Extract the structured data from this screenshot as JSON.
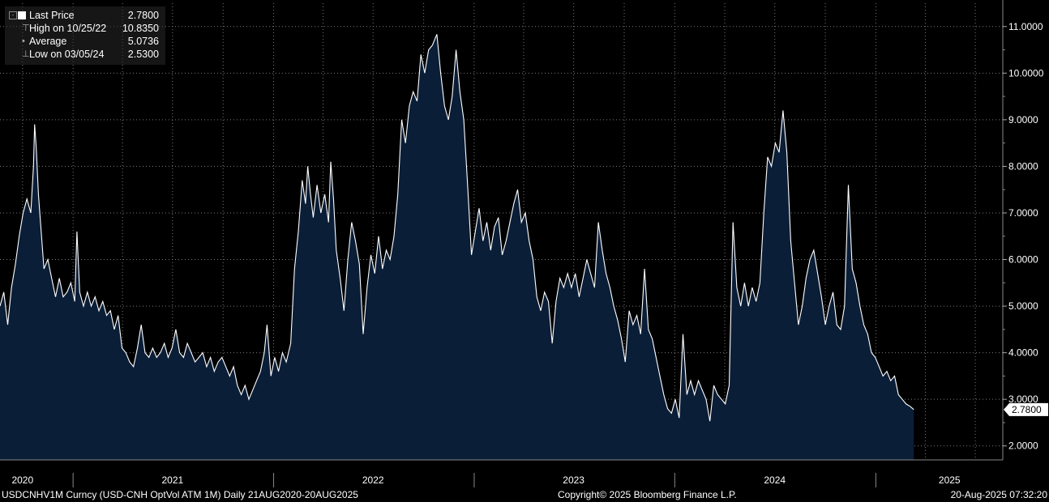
{
  "legend": {
    "last_label": "Last Price",
    "last_value": "2.7800",
    "high_label": "High on 10/25/22",
    "high_value": "10.8350",
    "avg_label": "Average",
    "avg_value": "5.0736",
    "low_label": "Low on 03/05/24",
    "low_value": "2.5300"
  },
  "footer": {
    "left": "USDCNHV1M Curncy (USD-CNH OptVol ATM 1M)  Daily 21AUG2020-20AUG2025",
    "center": "Copyright© 2025 Bloomberg Finance L.P.",
    "right": "20-Aug-2025 07:32:20"
  },
  "last_price_tag": "2.7800",
  "colors": {
    "line": "#ffffff",
    "fill": "#0b1e38",
    "grid": "#7a7a7a",
    "background": "#000000",
    "tag_bg": "#ffffff"
  },
  "chart_data": {
    "type": "area",
    "title": "",
    "xlabel": "",
    "ylabel": "",
    "ylim": [
      1.7,
      11.5
    ],
    "grid": true,
    "legend_position": "top-left",
    "yticks": [
      "2.0000",
      "3.0000",
      "4.0000",
      "5.0000",
      "6.0000",
      "7.0000",
      "8.0000",
      "9.0000",
      "10.0000",
      "11.0000"
    ],
    "ytick_values": [
      2,
      3,
      4,
      5,
      6,
      7,
      8,
      9,
      10,
      11
    ],
    "xtick_labels": [
      "2020",
      "2021",
      "2022",
      "2023",
      "2024",
      "2025"
    ],
    "x_label_positions": [
      "2020-10-01",
      "2021-07-01",
      "2022-07-01",
      "2023-07-01",
      "2024-07-01",
      "2025-05-15"
    ],
    "x_separators": [
      "2021-01-01",
      "2022-01-01",
      "2023-01-01",
      "2024-01-01",
      "2025-01-01"
    ],
    "series": [
      {
        "values": [
          [
            "2020-08-21",
            5.0
          ],
          [
            "2020-08-28",
            5.3
          ],
          [
            "2020-09-04",
            4.6
          ],
          [
            "2020-09-11",
            5.4
          ],
          [
            "2020-09-18",
            5.9
          ],
          [
            "2020-09-25",
            6.5
          ],
          [
            "2020-10-02",
            7.0
          ],
          [
            "2020-10-09",
            7.3
          ],
          [
            "2020-10-16",
            7.0
          ],
          [
            "2020-10-21",
            8.0
          ],
          [
            "2020-10-23",
            8.9
          ],
          [
            "2020-10-26",
            8.4
          ],
          [
            "2020-10-30",
            7.4
          ],
          [
            "2020-11-04",
            6.6
          ],
          [
            "2020-11-09",
            5.8
          ],
          [
            "2020-11-16",
            6.0
          ],
          [
            "2020-11-23",
            5.6
          ],
          [
            "2020-11-30",
            5.2
          ],
          [
            "2020-12-07",
            5.6
          ],
          [
            "2020-12-14",
            5.2
          ],
          [
            "2020-12-21",
            5.3
          ],
          [
            "2020-12-28",
            5.5
          ],
          [
            "2021-01-04",
            5.1
          ],
          [
            "2021-01-08",
            6.6
          ],
          [
            "2021-01-13",
            5.3
          ],
          [
            "2021-01-20",
            5.0
          ],
          [
            "2021-01-27",
            5.3
          ],
          [
            "2021-02-03",
            5.0
          ],
          [
            "2021-02-10",
            5.2
          ],
          [
            "2021-02-17",
            4.9
          ],
          [
            "2021-02-24",
            5.1
          ],
          [
            "2021-03-03",
            4.8
          ],
          [
            "2021-03-10",
            4.9
          ],
          [
            "2021-03-17",
            4.5
          ],
          [
            "2021-03-24",
            4.8
          ],
          [
            "2021-03-31",
            4.1
          ],
          [
            "2021-04-07",
            4.0
          ],
          [
            "2021-04-14",
            3.8
          ],
          [
            "2021-04-21",
            3.7
          ],
          [
            "2021-04-28",
            4.1
          ],
          [
            "2021-05-05",
            4.6
          ],
          [
            "2021-05-12",
            4.0
          ],
          [
            "2021-05-19",
            3.9
          ],
          [
            "2021-05-26",
            4.1
          ],
          [
            "2021-06-02",
            3.9
          ],
          [
            "2021-06-09",
            4.0
          ],
          [
            "2021-06-16",
            4.2
          ],
          [
            "2021-06-23",
            3.9
          ],
          [
            "2021-06-30",
            4.1
          ],
          [
            "2021-07-07",
            4.5
          ],
          [
            "2021-07-14",
            4.0
          ],
          [
            "2021-07-21",
            3.9
          ],
          [
            "2021-07-28",
            4.2
          ],
          [
            "2021-08-04",
            4.0
          ],
          [
            "2021-08-11",
            3.8
          ],
          [
            "2021-08-18",
            3.9
          ],
          [
            "2021-08-25",
            4.0
          ],
          [
            "2021-09-01",
            3.7
          ],
          [
            "2021-09-08",
            3.9
          ],
          [
            "2021-09-15",
            3.6
          ],
          [
            "2021-09-22",
            3.8
          ],
          [
            "2021-09-29",
            3.9
          ],
          [
            "2021-10-06",
            3.7
          ],
          [
            "2021-10-13",
            3.5
          ],
          [
            "2021-10-20",
            3.7
          ],
          [
            "2021-10-27",
            3.3
          ],
          [
            "2021-11-03",
            3.1
          ],
          [
            "2021-11-10",
            3.3
          ],
          [
            "2021-11-17",
            3.0
          ],
          [
            "2021-11-24",
            3.2
          ],
          [
            "2021-12-01",
            3.4
          ],
          [
            "2021-12-08",
            3.6
          ],
          [
            "2021-12-15",
            4.0
          ],
          [
            "2021-12-20",
            4.6
          ],
          [
            "2021-12-27",
            3.5
          ],
          [
            "2022-01-03",
            3.9
          ],
          [
            "2022-01-10",
            3.6
          ],
          [
            "2022-01-17",
            4.0
          ],
          [
            "2022-01-24",
            3.8
          ],
          [
            "2022-02-01",
            4.2
          ],
          [
            "2022-02-08",
            5.8
          ],
          [
            "2022-02-15",
            6.6
          ],
          [
            "2022-02-22",
            7.7
          ],
          [
            "2022-02-28",
            7.2
          ],
          [
            "2022-03-04",
            8.0
          ],
          [
            "2022-03-09",
            7.4
          ],
          [
            "2022-03-14",
            6.9
          ],
          [
            "2022-03-21",
            7.6
          ],
          [
            "2022-03-28",
            7.0
          ],
          [
            "2022-04-04",
            7.4
          ],
          [
            "2022-04-11",
            6.8
          ],
          [
            "2022-04-15",
            8.1
          ],
          [
            "2022-04-20",
            7.3
          ],
          [
            "2022-04-25",
            6.2
          ],
          [
            "2022-05-02",
            5.6
          ],
          [
            "2022-05-09",
            4.9
          ],
          [
            "2022-05-16",
            6.0
          ],
          [
            "2022-05-23",
            6.8
          ],
          [
            "2022-05-30",
            6.4
          ],
          [
            "2022-06-06",
            5.9
          ],
          [
            "2022-06-13",
            4.4
          ],
          [
            "2022-06-20",
            5.4
          ],
          [
            "2022-06-27",
            6.1
          ],
          [
            "2022-07-04",
            5.7
          ],
          [
            "2022-07-11",
            6.5
          ],
          [
            "2022-07-18",
            5.8
          ],
          [
            "2022-07-25",
            6.2
          ],
          [
            "2022-08-01",
            6.0
          ],
          [
            "2022-08-08",
            6.5
          ],
          [
            "2022-08-15",
            7.4
          ],
          [
            "2022-08-22",
            9.0
          ],
          [
            "2022-08-29",
            8.5
          ],
          [
            "2022-09-05",
            9.3
          ],
          [
            "2022-09-12",
            9.6
          ],
          [
            "2022-09-19",
            9.4
          ],
          [
            "2022-09-26",
            10.4
          ],
          [
            "2022-10-03",
            10.0
          ],
          [
            "2022-10-10",
            10.5
          ],
          [
            "2022-10-17",
            10.6
          ],
          [
            "2022-10-25",
            10.835
          ],
          [
            "2022-11-01",
            10.0
          ],
          [
            "2022-11-08",
            9.3
          ],
          [
            "2022-11-15",
            9.0
          ],
          [
            "2022-11-22",
            9.5
          ],
          [
            "2022-11-29",
            10.5
          ],
          [
            "2022-12-06",
            9.6
          ],
          [
            "2022-12-13",
            9.0
          ],
          [
            "2022-12-20",
            7.6
          ],
          [
            "2022-12-27",
            6.1
          ],
          [
            "2023-01-03",
            6.6
          ],
          [
            "2023-01-10",
            7.1
          ],
          [
            "2023-01-17",
            6.4
          ],
          [
            "2023-01-24",
            6.8
          ],
          [
            "2023-01-31",
            6.2
          ],
          [
            "2023-02-07",
            6.7
          ],
          [
            "2023-02-14",
            6.9
          ],
          [
            "2023-02-21",
            6.1
          ],
          [
            "2023-02-28",
            6.4
          ],
          [
            "2023-03-07",
            6.8
          ],
          [
            "2023-03-14",
            7.2
          ],
          [
            "2023-03-21",
            7.5
          ],
          [
            "2023-03-28",
            6.8
          ],
          [
            "2023-04-04",
            7.0
          ],
          [
            "2023-04-11",
            6.4
          ],
          [
            "2023-04-18",
            6.0
          ],
          [
            "2023-04-25",
            5.2
          ],
          [
            "2023-05-02",
            4.9
          ],
          [
            "2023-05-09",
            5.3
          ],
          [
            "2023-05-16",
            5.1
          ],
          [
            "2023-05-23",
            4.2
          ],
          [
            "2023-05-30",
            5.1
          ],
          [
            "2023-06-06",
            5.6
          ],
          [
            "2023-06-13",
            5.4
          ],
          [
            "2023-06-20",
            5.7
          ],
          [
            "2023-06-27",
            5.4
          ],
          [
            "2023-07-04",
            5.7
          ],
          [
            "2023-07-11",
            5.2
          ],
          [
            "2023-07-18",
            5.6
          ],
          [
            "2023-07-25",
            6.0
          ],
          [
            "2023-08-01",
            5.7
          ],
          [
            "2023-08-08",
            5.4
          ],
          [
            "2023-08-15",
            6.8
          ],
          [
            "2023-08-22",
            6.2
          ],
          [
            "2023-08-29",
            5.7
          ],
          [
            "2023-09-05",
            5.4
          ],
          [
            "2023-09-12",
            5.0
          ],
          [
            "2023-09-19",
            4.7
          ],
          [
            "2023-09-26",
            4.3
          ],
          [
            "2023-10-03",
            3.8
          ],
          [
            "2023-10-10",
            4.9
          ],
          [
            "2023-10-17",
            4.6
          ],
          [
            "2023-10-24",
            4.8
          ],
          [
            "2023-10-31",
            4.4
          ],
          [
            "2023-11-07",
            5.8
          ],
          [
            "2023-11-14",
            4.5
          ],
          [
            "2023-11-21",
            4.3
          ],
          [
            "2023-11-28",
            3.9
          ],
          [
            "2023-12-05",
            3.5
          ],
          [
            "2023-12-12",
            3.1
          ],
          [
            "2023-12-19",
            2.8
          ],
          [
            "2023-12-26",
            2.7
          ],
          [
            "2024-01-02",
            3.0
          ],
          [
            "2024-01-09",
            2.6
          ],
          [
            "2024-01-16",
            4.4
          ],
          [
            "2024-01-23",
            3.1
          ],
          [
            "2024-01-30",
            3.4
          ],
          [
            "2024-02-06",
            3.1
          ],
          [
            "2024-02-13",
            3.4
          ],
          [
            "2024-02-20",
            3.2
          ],
          [
            "2024-02-27",
            3.0
          ],
          [
            "2024-03-05",
            2.53
          ],
          [
            "2024-03-12",
            3.3
          ],
          [
            "2024-03-19",
            3.1
          ],
          [
            "2024-03-26",
            3.0
          ],
          [
            "2024-04-02",
            2.9
          ],
          [
            "2024-04-09",
            3.3
          ],
          [
            "2024-04-16",
            6.8
          ],
          [
            "2024-04-23",
            5.4
          ],
          [
            "2024-04-30",
            5.0
          ],
          [
            "2024-05-07",
            5.5
          ],
          [
            "2024-05-14",
            5.0
          ],
          [
            "2024-05-21",
            5.4
          ],
          [
            "2024-05-28",
            5.1
          ],
          [
            "2024-06-04",
            5.5
          ],
          [
            "2024-06-11",
            7.0
          ],
          [
            "2024-06-18",
            8.2
          ],
          [
            "2024-06-25",
            8.0
          ],
          [
            "2024-07-02",
            8.5
          ],
          [
            "2024-07-09",
            8.3
          ],
          [
            "2024-07-16",
            9.2
          ],
          [
            "2024-07-23",
            8.3
          ],
          [
            "2024-07-30",
            6.4
          ],
          [
            "2024-08-06",
            5.5
          ],
          [
            "2024-08-13",
            4.6
          ],
          [
            "2024-08-20",
            5.0
          ],
          [
            "2024-08-27",
            5.6
          ],
          [
            "2024-09-03",
            6.0
          ],
          [
            "2024-09-10",
            6.2
          ],
          [
            "2024-09-17",
            5.7
          ],
          [
            "2024-09-24",
            5.2
          ],
          [
            "2024-10-01",
            4.6
          ],
          [
            "2024-10-08",
            5.0
          ],
          [
            "2024-10-15",
            5.3
          ],
          [
            "2024-10-22",
            4.6
          ],
          [
            "2024-10-29",
            4.5
          ],
          [
            "2024-11-05",
            5.0
          ],
          [
            "2024-11-12",
            7.6
          ],
          [
            "2024-11-19",
            5.8
          ],
          [
            "2024-11-26",
            5.5
          ],
          [
            "2024-12-03",
            5.0
          ],
          [
            "2024-12-10",
            4.6
          ],
          [
            "2024-12-17",
            4.4
          ],
          [
            "2024-12-24",
            4.0
          ],
          [
            "2024-12-31",
            3.9
          ],
          [
            "2025-01-07",
            3.7
          ],
          [
            "2025-01-14",
            3.5
          ],
          [
            "2025-01-21",
            3.6
          ],
          [
            "2025-01-28",
            3.4
          ],
          [
            "2025-02-04",
            3.5
          ],
          [
            "2025-02-11",
            3.1
          ],
          [
            "2025-02-18",
            3.0
          ],
          [
            "2025-02-25",
            2.9
          ],
          [
            "2025-03-04",
            2.85
          ],
          [
            "2025-03-11",
            2.78
          ]
        ]
      }
    ]
  }
}
